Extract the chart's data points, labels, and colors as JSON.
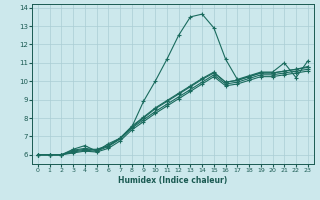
{
  "xlabel": "Humidex (Indice chaleur)",
  "ylabel": "",
  "bg_color": "#cce8ec",
  "line_color": "#1a6b5e",
  "grid_color": "#aacdd4",
  "xlim_min": -0.5,
  "xlim_max": 23.5,
  "ylim_min": 5.5,
  "ylim_max": 14.2,
  "xticks": [
    0,
    1,
    2,
    3,
    4,
    5,
    6,
    7,
    8,
    9,
    10,
    11,
    12,
    13,
    14,
    15,
    16,
    17,
    18,
    19,
    20,
    21,
    22,
    23
  ],
  "yticks": [
    6,
    7,
    8,
    9,
    10,
    11,
    12,
    13,
    14
  ],
  "series": [
    [
      6.0,
      6.0,
      6.0,
      6.3,
      6.5,
      6.2,
      6.6,
      6.9,
      7.5,
      8.9,
      10.0,
      11.2,
      12.5,
      13.5,
      13.65,
      12.9,
      11.2,
      10.1,
      10.3,
      10.5,
      10.5,
      11.0,
      10.2,
      11.1
    ],
    [
      6.0,
      6.0,
      6.0,
      6.2,
      6.3,
      6.3,
      6.5,
      6.9,
      7.5,
      8.0,
      8.5,
      8.9,
      9.3,
      9.7,
      10.1,
      10.45,
      9.95,
      10.05,
      10.25,
      10.45,
      10.45,
      10.55,
      10.65,
      10.75
    ],
    [
      6.0,
      6.0,
      6.0,
      6.15,
      6.25,
      6.2,
      6.45,
      6.85,
      7.45,
      7.9,
      8.35,
      8.75,
      9.15,
      9.55,
      9.95,
      10.35,
      9.85,
      9.95,
      10.15,
      10.35,
      10.35,
      10.45,
      10.55,
      10.65
    ],
    [
      6.0,
      6.0,
      6.0,
      6.25,
      6.35,
      6.25,
      6.5,
      6.9,
      7.55,
      8.05,
      8.55,
      8.95,
      9.35,
      9.75,
      10.15,
      10.5,
      9.95,
      10.05,
      10.25,
      10.45,
      10.45,
      10.55,
      10.65,
      10.8
    ],
    [
      6.0,
      6.0,
      6.0,
      6.1,
      6.2,
      6.15,
      6.35,
      6.75,
      7.35,
      7.8,
      8.25,
      8.65,
      9.05,
      9.45,
      9.85,
      10.25,
      9.75,
      9.85,
      10.05,
      10.25,
      10.25,
      10.35,
      10.45,
      10.55
    ]
  ]
}
